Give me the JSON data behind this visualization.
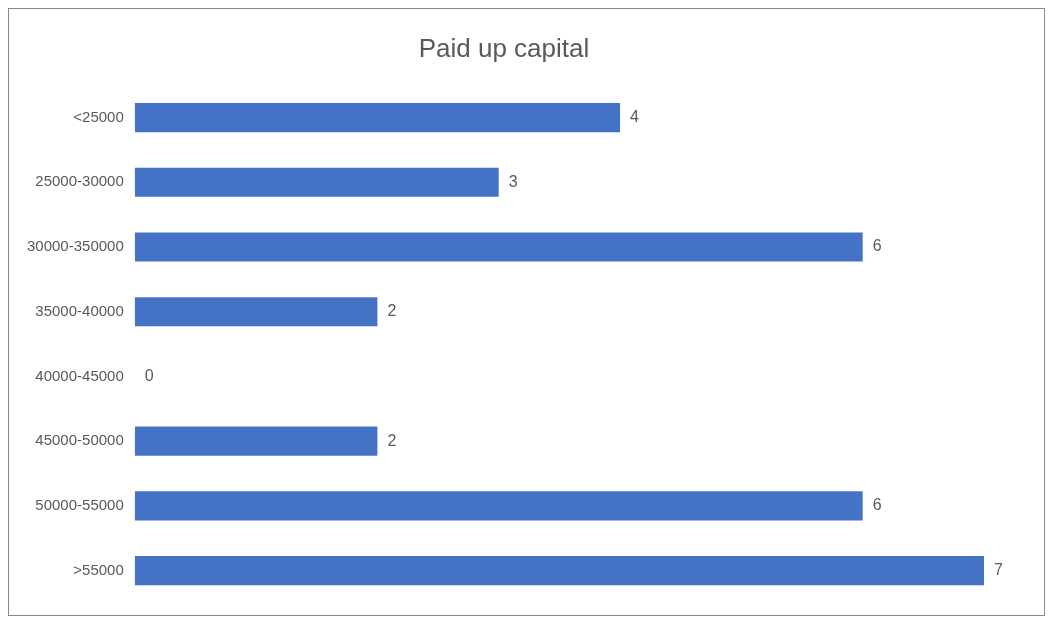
{
  "chart_data": {
    "type": "bar",
    "orientation": "horizontal",
    "title": "Paid up capital",
    "categories": [
      "<25000",
      "25000-30000",
      "30000-350000",
      "35000-40000",
      "40000-45000",
      "45000-50000",
      "50000-55000",
      ">55000"
    ],
    "values": [
      4,
      3,
      6,
      2,
      0,
      2,
      6,
      7
    ],
    "color": "#4472c4",
    "data_labels": true
  }
}
